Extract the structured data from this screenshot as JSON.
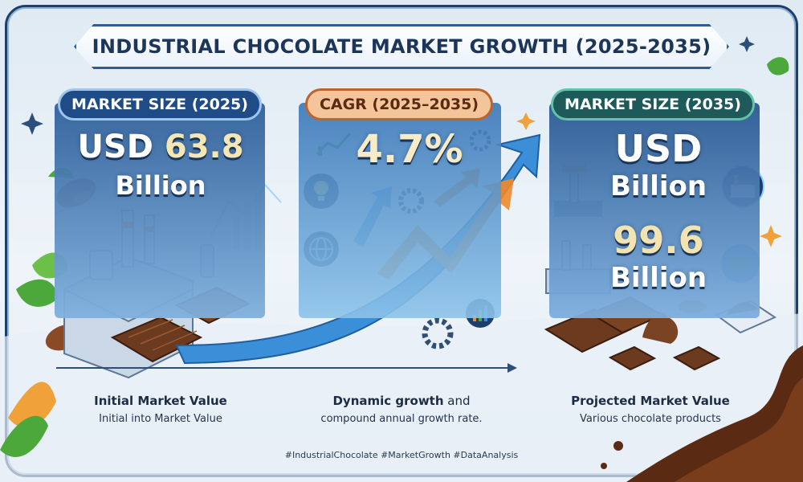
{
  "title": "INDUSTRIAL CHOCOLATE MARKET GROWTH (2025-2035)",
  "left": {
    "pill": "MARKET SIZE (2025)",
    "value_prefix": "USD ",
    "value_number": "63.8",
    "value_unit": "Billion",
    "caption_title": "Initial Market Value",
    "caption_sub": "Initial into Market Value"
  },
  "middle": {
    "pill": "CAGR (2025–2035)",
    "value": "4.7%",
    "caption_title_bold": "Dynamic growth",
    "caption_title_rest": " and",
    "caption_sub": "compound annual growth rate."
  },
  "right": {
    "pill": "MARKET SIZE (2035)",
    "line1": "USD",
    "line2": "Billion",
    "line3": "99.6",
    "line4": "Billion",
    "caption_title": "Projected Market Value",
    "caption_sub": "Various chocolate products"
  },
  "hashtags": "#IndustrialChocolate #MarketGrowth #DataAnalysis",
  "colors": {
    "navy": "#1f3f6b",
    "chocolate": "#6b3a1f",
    "arrow_blue": "#3b8fd8",
    "arrow_orange": "#f08a2c",
    "leaf_green": "#4ca83a"
  },
  "icons": [
    "cocoa-pod-icon",
    "factory-icon",
    "chocolate-bar-icon",
    "growth-chart-icon",
    "gear-icon",
    "lightbulb-icon",
    "globe-icon",
    "robot-arm-icon",
    "chocolate-swirl-icon",
    "leaf-icon",
    "sparkle-icon"
  ]
}
